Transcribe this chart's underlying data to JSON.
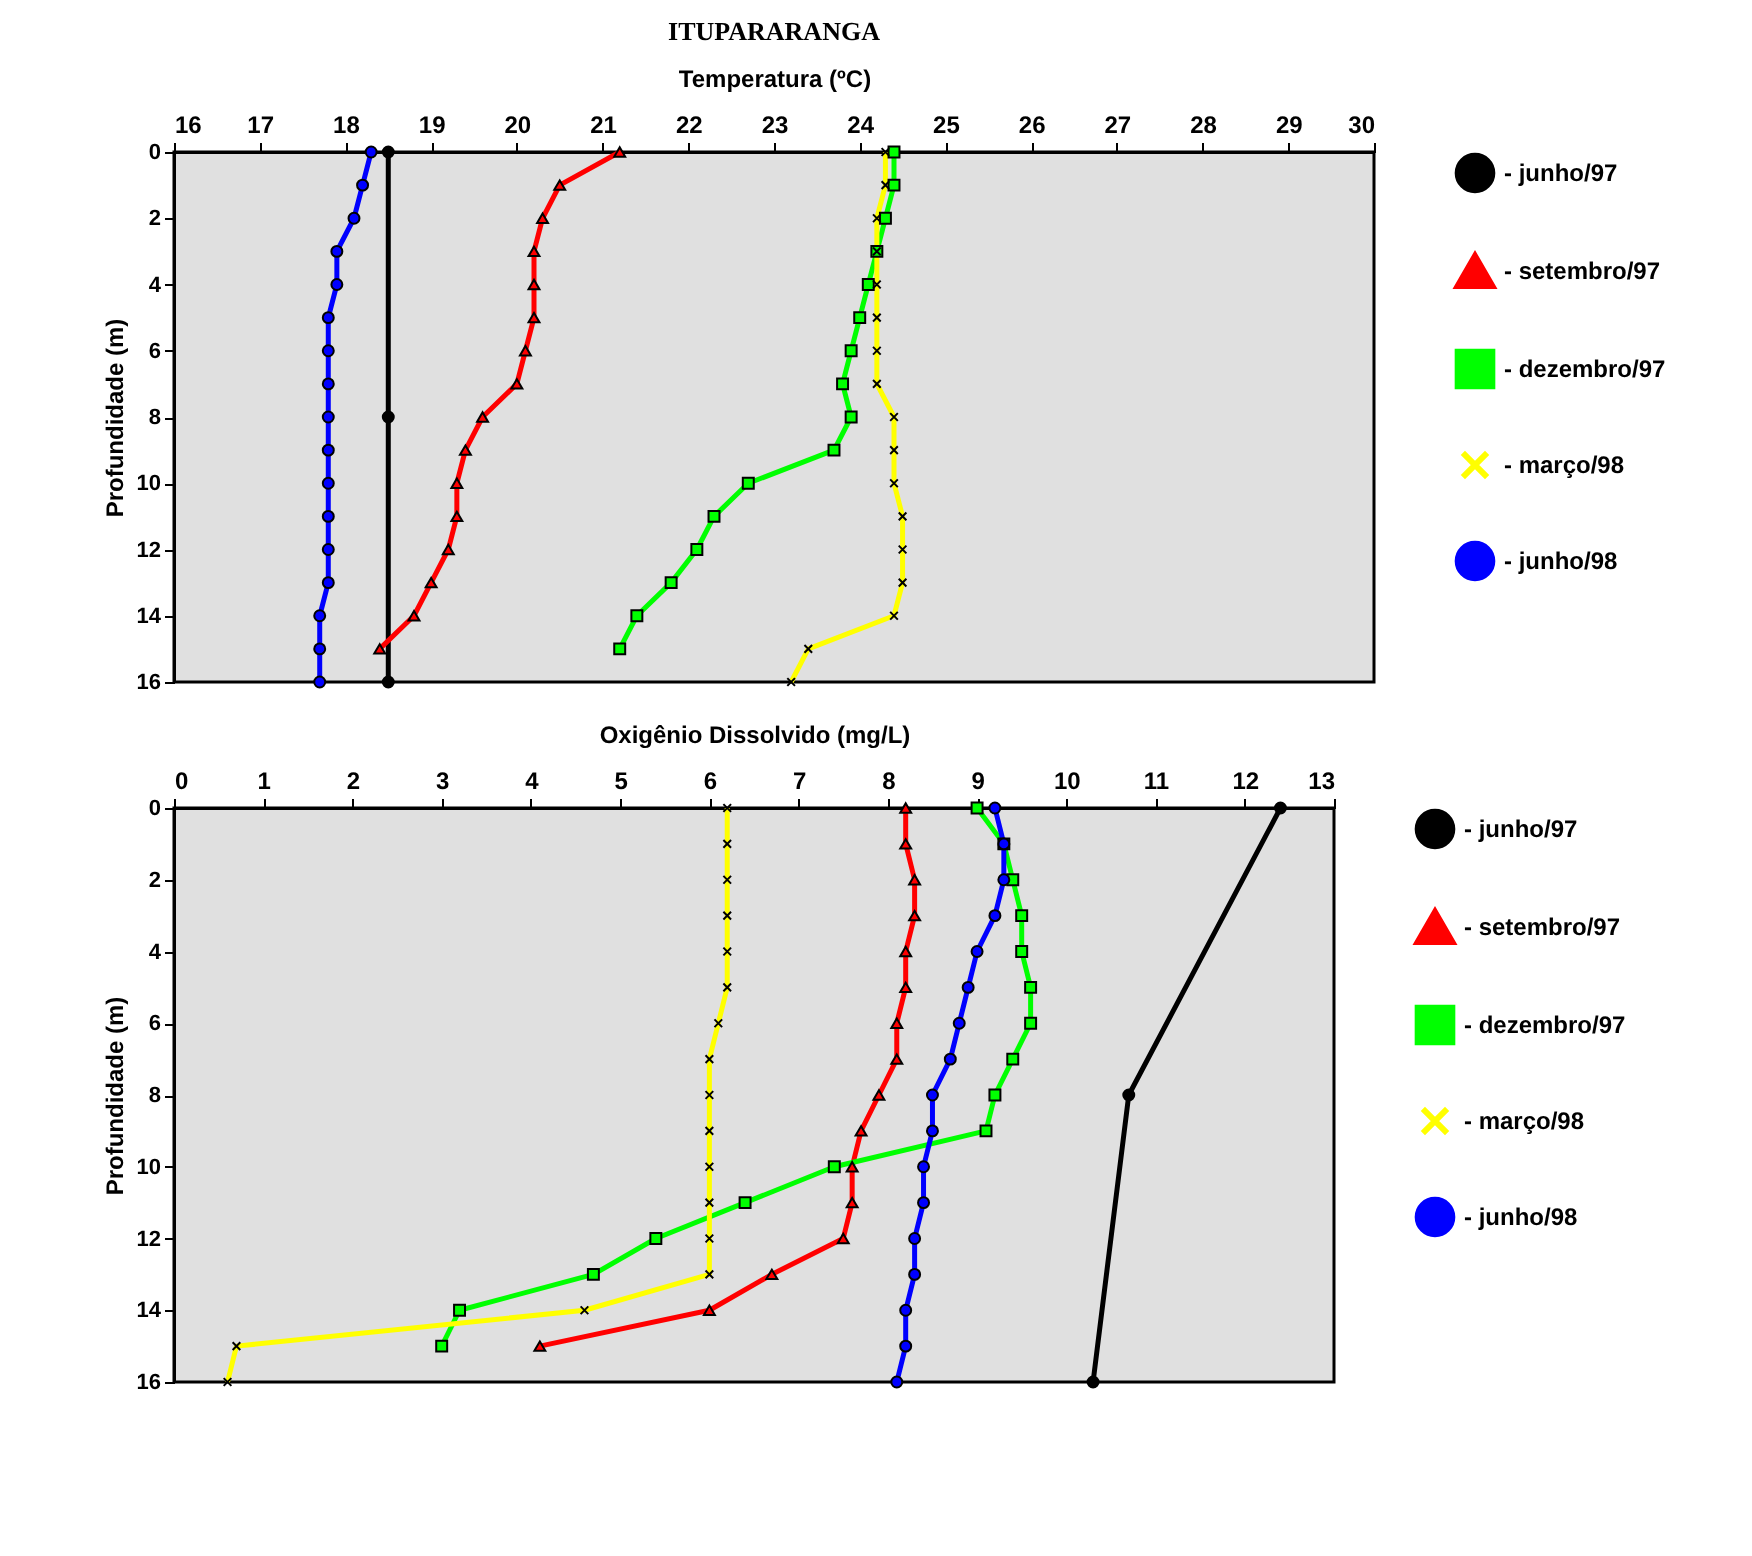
{
  "chart_data": [
    {
      "type": "line",
      "title": "ITUPARARANGA",
      "xlabel": "Temperatura (ºC)",
      "ylabel": "Profundidade (m)",
      "xlim": [
        16,
        30
      ],
      "xticks": [
        16,
        17,
        18,
        19,
        20,
        21,
        22,
        23,
        24,
        25,
        26,
        27,
        28,
        29,
        30
      ],
      "ylim": [
        16,
        0
      ],
      "yticks": [
        0,
        2,
        4,
        6,
        8,
        10,
        12,
        14,
        16
      ],
      "grid": false,
      "legend": "right",
      "line_style": "solid",
      "series": [
        {
          "name": "- junho/97",
          "color": "#000000",
          "marker": "circle",
          "x": [
            18.5,
            18.5,
            18.5
          ],
          "values": [
            0,
            8,
            16
          ]
        },
        {
          "name": "- setembro/97",
          "color": "#ff0000",
          "marker": "triangle",
          "x": [
            21.2,
            20.5,
            20.3,
            20.2,
            20.2,
            20.2,
            20.1,
            20.0,
            19.6,
            19.4,
            19.3,
            19.3,
            19.2,
            19.0,
            18.8,
            18.4
          ],
          "values": [
            0,
            1,
            2,
            3,
            4,
            5,
            6,
            7,
            8,
            9,
            10,
            11,
            12,
            13,
            14,
            15
          ]
        },
        {
          "name": "- dezembro/97",
          "color": "#00ff00",
          "marker": "square",
          "x": [
            24.4,
            24.4,
            24.3,
            24.2,
            24.1,
            24.0,
            23.9,
            23.8,
            23.9,
            23.7,
            22.7,
            22.3,
            22.1,
            21.8,
            21.4,
            21.2
          ],
          "values": [
            0,
            1,
            2,
            3,
            4,
            5,
            6,
            7,
            8,
            9,
            10,
            11,
            12,
            13,
            14,
            15
          ]
        },
        {
          "name": "- março/98",
          "color": "#ffff00",
          "marker": "cross",
          "x": [
            24.3,
            24.3,
            24.2,
            24.2,
            24.2,
            24.2,
            24.2,
            24.2,
            24.4,
            24.4,
            24.4,
            24.5,
            24.5,
            24.5,
            24.4,
            23.4,
            23.2
          ],
          "values": [
            0,
            1,
            2,
            3,
            4,
            5,
            6,
            7,
            8,
            9,
            10,
            11,
            12,
            13,
            14,
            15,
            16
          ]
        },
        {
          "name": "- junho/98",
          "color": "#0000ff",
          "marker": "circle",
          "x": [
            18.3,
            18.2,
            18.1,
            17.9,
            17.9,
            17.8,
            17.8,
            17.8,
            17.8,
            17.8,
            17.8,
            17.8,
            17.8,
            17.8,
            17.7,
            17.7,
            17.7
          ],
          "values": [
            0,
            1,
            2,
            3,
            4,
            5,
            6,
            7,
            8,
            9,
            10,
            11,
            12,
            13,
            14,
            15,
            16
          ]
        }
      ]
    },
    {
      "type": "line",
      "xlabel": "Oxigênio Dissolvido (mg/L)",
      "ylabel": "Profundidade (m)",
      "xlim": [
        0,
        13
      ],
      "xticks": [
        0,
        1,
        2,
        3,
        4,
        5,
        6,
        7,
        8,
        9,
        10,
        11,
        12,
        13
      ],
      "ylim": [
        16,
        0
      ],
      "yticks": [
        0,
        2,
        4,
        6,
        8,
        10,
        12,
        14,
        16
      ],
      "grid": false,
      "legend": "right",
      "line_style": "solid",
      "series": [
        {
          "name": "- junho/97",
          "color": "#000000",
          "marker": "circle",
          "x": [
            12.4,
            10.7,
            10.3
          ],
          "values": [
            0,
            8,
            16
          ]
        },
        {
          "name": "- setembro/97",
          "color": "#ff0000",
          "marker": "triangle",
          "x": [
            8.2,
            8.2,
            8.3,
            8.3,
            8.2,
            8.2,
            8.1,
            8.1,
            7.9,
            7.7,
            7.6,
            7.6,
            7.5,
            6.7,
            6.0,
            4.1
          ],
          "values": [
            0,
            1,
            2,
            3,
            4,
            5,
            6,
            7,
            8,
            9,
            10,
            11,
            12,
            13,
            14,
            15
          ]
        },
        {
          "name": "- dezembro/97",
          "color": "#00ff00",
          "marker": "square",
          "x": [
            9.0,
            9.3,
            9.4,
            9.5,
            9.5,
            9.6,
            9.6,
            9.4,
            9.2,
            9.1,
            7.4,
            6.4,
            5.4,
            4.7,
            3.2,
            3.0
          ],
          "values": [
            0,
            1,
            2,
            3,
            4,
            5,
            6,
            7,
            8,
            9,
            10,
            11,
            12,
            13,
            14,
            15
          ]
        },
        {
          "name": "- março/98",
          "color": "#ffff00",
          "marker": "cross",
          "x": [
            6.2,
            6.2,
            6.2,
            6.2,
            6.2,
            6.2,
            6.1,
            6.0,
            6.0,
            6.0,
            6.0,
            6.0,
            6.0,
            6.0,
            4.6,
            0.7,
            0.6
          ],
          "values": [
            0,
            1,
            2,
            3,
            4,
            5,
            6,
            7,
            8,
            9,
            10,
            11,
            12,
            13,
            14,
            15,
            16
          ]
        },
        {
          "name": "- junho/98",
          "color": "#0000ff",
          "marker": "circle",
          "x": [
            9.2,
            9.3,
            9.3,
            9.2,
            9.0,
            8.9,
            8.8,
            8.7,
            8.5,
            8.5,
            8.4,
            8.4,
            8.3,
            8.3,
            8.2,
            8.2,
            8.1
          ],
          "values": [
            0,
            1,
            2,
            3,
            4,
            5,
            6,
            7,
            8,
            9,
            10,
            11,
            12,
            13,
            14,
            15,
            16
          ]
        }
      ]
    }
  ]
}
